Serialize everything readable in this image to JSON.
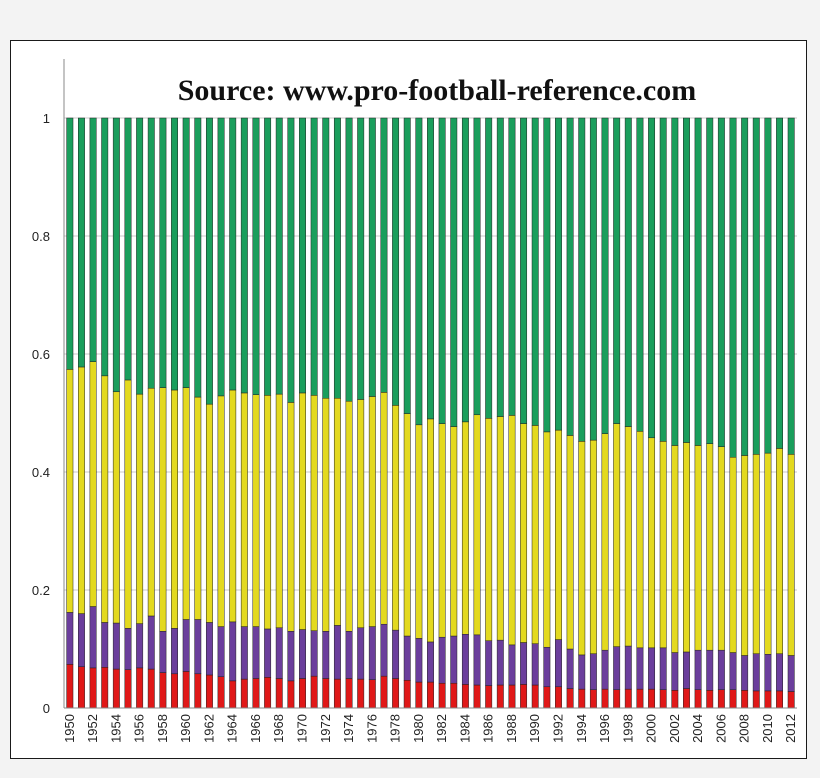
{
  "chart_data": {
    "type": "bar",
    "stacked": true,
    "title": "Source: www.pro-football-reference.com",
    "xlabel": "",
    "ylabel": "",
    "ylim": [
      0,
      1.1
    ],
    "y_ticks": [
      "0",
      "0.2",
      "0.4",
      "0.6",
      "0.8",
      "1"
    ],
    "grid": true,
    "legend": "none",
    "categories": [
      "1950",
      "1951",
      "1952",
      "1953",
      "1954",
      "1955",
      "1956",
      "1957",
      "1958",
      "1959",
      "1960",
      "1961",
      "1962",
      "1963",
      "1964",
      "1965",
      "1966",
      "1967",
      "1968",
      "1969",
      "1970",
      "1971",
      "1972",
      "1973",
      "1974",
      "1975",
      "1976",
      "1977",
      "1978",
      "1979",
      "1980",
      "1981",
      "1982",
      "1983",
      "1984",
      "1985",
      "1986",
      "1987",
      "1988",
      "1989",
      "1990",
      "1991",
      "1992",
      "1993",
      "1994",
      "1995",
      "1996",
      "1997",
      "1998",
      "1999",
      "2000",
      "2001",
      "2002",
      "2003",
      "2004",
      "2005",
      "2006",
      "2007",
      "2008",
      "2009",
      "2010",
      "2011",
      "2012"
    ],
    "x_tick_labels": [
      "1950",
      "1952",
      "1954",
      "1956",
      "1958",
      "1960",
      "1962",
      "1964",
      "1966",
      "1968",
      "1970",
      "1972",
      "1974",
      "1976",
      "1978",
      "1980",
      "1982",
      "1984",
      "1986",
      "1988",
      "1990",
      "1992",
      "1994",
      "1996",
      "1998",
      "2000",
      "2002",
      "2004",
      "2006",
      "2008",
      "2010",
      "2012"
    ],
    "series": [
      {
        "color": "#e01818",
        "values": [
          0.074,
          0.07,
          0.068,
          0.069,
          0.066,
          0.065,
          0.068,
          0.066,
          0.06,
          0.058,
          0.062,
          0.058,
          0.056,
          0.053,
          0.046,
          0.049,
          0.05,
          0.052,
          0.05,
          0.046,
          0.05,
          0.054,
          0.05,
          0.049,
          0.05,
          0.049,
          0.048,
          0.054,
          0.05,
          0.047,
          0.044,
          0.044,
          0.042,
          0.042,
          0.04,
          0.039,
          0.038,
          0.039,
          0.039,
          0.04,
          0.039,
          0.036,
          0.036,
          0.033,
          0.032,
          0.031,
          0.032,
          0.031,
          0.032,
          0.032,
          0.032,
          0.031,
          0.03,
          0.033,
          0.031,
          0.03,
          0.031,
          0.031,
          0.03,
          0.029,
          0.029,
          0.029,
          0.028
        ]
      },
      {
        "color": "#6b3e9c",
        "values": [
          0.088,
          0.09,
          0.104,
          0.076,
          0.078,
          0.07,
          0.075,
          0.09,
          0.07,
          0.077,
          0.088,
          0.092,
          0.089,
          0.085,
          0.1,
          0.089,
          0.088,
          0.082,
          0.086,
          0.084,
          0.083,
          0.077,
          0.08,
          0.091,
          0.08,
          0.087,
          0.09,
          0.088,
          0.082,
          0.075,
          0.074,
          0.068,
          0.078,
          0.08,
          0.085,
          0.085,
          0.076,
          0.076,
          0.068,
          0.071,
          0.07,
          0.067,
          0.08,
          0.067,
          0.058,
          0.061,
          0.066,
          0.073,
          0.073,
          0.07,
          0.07,
          0.071,
          0.064,
          0.062,
          0.067,
          0.068,
          0.067,
          0.063,
          0.059,
          0.063,
          0.062,
          0.063,
          0.061
        ]
      },
      {
        "color": "#e3d91f",
        "values": [
          0.412,
          0.418,
          0.415,
          0.418,
          0.392,
          0.421,
          0.389,
          0.386,
          0.413,
          0.404,
          0.393,
          0.377,
          0.37,
          0.391,
          0.393,
          0.396,
          0.393,
          0.396,
          0.396,
          0.388,
          0.401,
          0.399,
          0.395,
          0.385,
          0.39,
          0.387,
          0.39,
          0.393,
          0.381,
          0.377,
          0.362,
          0.378,
          0.362,
          0.355,
          0.36,
          0.373,
          0.377,
          0.379,
          0.389,
          0.371,
          0.37,
          0.365,
          0.355,
          0.362,
          0.362,
          0.362,
          0.367,
          0.378,
          0.372,
          0.367,
          0.356,
          0.35,
          0.351,
          0.355,
          0.347,
          0.35,
          0.345,
          0.331,
          0.339,
          0.338,
          0.341,
          0.348,
          0.341
        ]
      },
      {
        "color": "#1a9e5c",
        "values": [
          0.426,
          0.422,
          0.413,
          0.437,
          0.464,
          0.444,
          0.468,
          0.458,
          0.457,
          0.461,
          0.457,
          0.473,
          0.485,
          0.471,
          0.461,
          0.466,
          0.469,
          0.47,
          0.468,
          0.482,
          0.466,
          0.47,
          0.475,
          0.475,
          0.48,
          0.477,
          0.472,
          0.465,
          0.487,
          0.501,
          0.52,
          0.51,
          0.518,
          0.523,
          0.515,
          0.503,
          0.509,
          0.506,
          0.504,
          0.518,
          0.521,
          0.532,
          0.529,
          0.538,
          0.548,
          0.546,
          0.535,
          0.518,
          0.523,
          0.531,
          0.542,
          0.548,
          0.555,
          0.55,
          0.555,
          0.552,
          0.557,
          0.575,
          0.572,
          0.57,
          0.568,
          0.56,
          0.57
        ]
      }
    ]
  }
}
